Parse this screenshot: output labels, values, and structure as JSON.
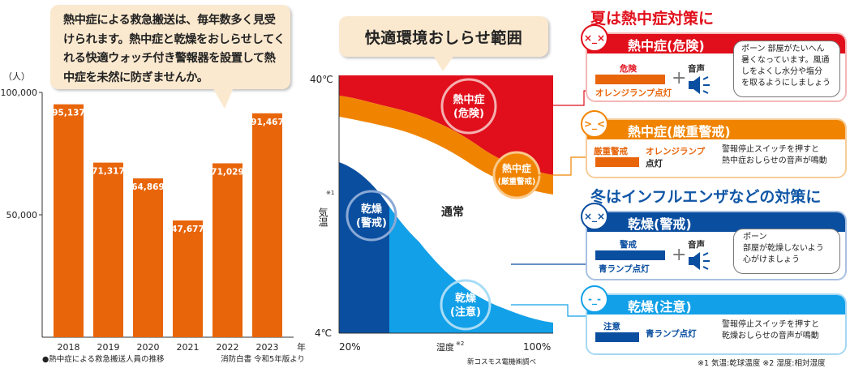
{
  "callout_text": "熱中症による救急搬送は、毎年数多く見受けられます。熱中症と乾燥をおしらせしてくれる快適ウォッチ付き警報器を設置して熱中症を未然に防ぎませんか。",
  "chart_data": [
    {
      "type": "bar",
      "categories": [
        "2018",
        "2019",
        "2020",
        "2021",
        "2022",
        "2023"
      ],
      "values": [
        95137,
        71317,
        64869,
        47677,
        71029,
        91467
      ],
      "value_labels": [
        "95,137",
        "71,317",
        "64,869",
        "47,677",
        "71,029",
        "91,467"
      ],
      "unit": "（人）",
      "x_unit": "年",
      "yticks": [
        {
          "value": 100000,
          "label": "100,000"
        },
        {
          "value": 50000,
          "label": "50,000"
        }
      ],
      "ylim": [
        0,
        100000
      ],
      "color": "#e8650a",
      "caption": "●熱中症による救急搬送人員の推移",
      "source": "消防白書 令和5年版より"
    },
    {
      "type": "area",
      "title": "快適環境おしらせ範囲",
      "ylabel": "気温",
      "ylabel_note": "※1",
      "xlabel": "湿度",
      "xlabel_note": "※2",
      "y_top_label": "40℃",
      "y_bottom_label": "4℃",
      "x_left_label": "20%",
      "x_right_label": "100%",
      "source": "新コスモス電機㈱調べ",
      "regions": [
        {
          "name": "heat-danger",
          "label_line1": "熱中症",
          "label_line2": "(危険)",
          "color": "#e10f1b"
        },
        {
          "name": "heat-warning",
          "label_line1": "熱中症",
          "label_line2": "(厳重警戒)",
          "color": "#f08400"
        },
        {
          "name": "normal",
          "label_line1": "通常",
          "color": "#ffffff"
        },
        {
          "name": "dry-warning",
          "label_line1": "乾燥",
          "label_line2": "(警戒)",
          "color": "#0a4ea0"
        },
        {
          "name": "dry-caution",
          "label_line1": "乾燥",
          "label_line2": "(注意)",
          "color": "#12a0e8"
        }
      ]
    }
  ],
  "summer_header": "夏は熱中症対策に",
  "winter_header": "冬はインフルエンザなどの対策に",
  "cards": {
    "heat_danger": {
      "title": "熱中症(危険)",
      "lamp_top": "危険",
      "lamp_label": "オレンジランプ点灯",
      "sound_label": "音声",
      "message": [
        "ポーン 部屋がたいへん",
        "暑くなっています。風通",
        "しをよくし水分や塩分",
        "を取るようにしましょう"
      ]
    },
    "heat_warning": {
      "title": "熱中症(厳重警戒)",
      "lamp_top": "厳重警戒",
      "lamp_label_1": "オレンジランプ",
      "lamp_label_2": "点灯",
      "message": [
        "警報停止スイッチを押すと",
        "熱中症おしらせの音声が鳴動"
      ]
    },
    "dry_warning": {
      "title": "乾燥(警戒)",
      "lamp_top": "警戒",
      "lamp_label": "青ランプ点灯",
      "sound_label": "音声",
      "message": [
        "ポーン",
        "部屋が乾燥しないよう",
        "心がけましょう"
      ]
    },
    "dry_caution": {
      "title": "乾燥(注意)",
      "lamp_top": "注意",
      "lamp_label": "青ランプ点灯",
      "message": [
        "警報停止スイッチを押すと",
        "乾燥おしらせの音声が鳴動"
      ]
    }
  },
  "footnote": "※1 気温:乾球温度 ※2 湿度:相対湿度",
  "colors": {
    "orange": "#e8650a",
    "red": "#e10f1b",
    "amber": "#f08400",
    "navy": "#0a4ea0",
    "sky": "#12a0e8",
    "cream": "#fbe9cf"
  }
}
